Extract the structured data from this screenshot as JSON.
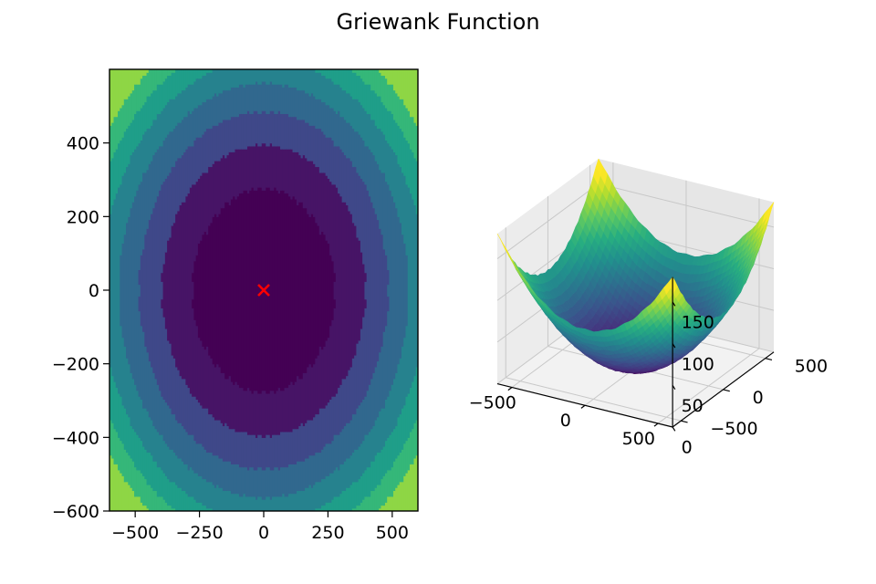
{
  "figure": {
    "title": "Griewank Function"
  },
  "colors": {
    "levels": [
      "#440154",
      "#471466",
      "#3f4889",
      "#31688e",
      "#26828e",
      "#1f9e89",
      "#35b779",
      "#8ed645"
    ],
    "marker": "#ff0000",
    "pane": "#f2f2f2",
    "grid": "#c8c8c8"
  },
  "chart_data": [
    {
      "type": "heatmap",
      "subtype": "filled-contour",
      "title": "",
      "xlabel": "",
      "ylabel": "",
      "xlim": [
        -600,
        600
      ],
      "ylim": [
        -600,
        600
      ],
      "xticks": [
        -500,
        -250,
        0,
        250,
        500
      ],
      "xtick_labels": [
        "−500",
        "−250",
        "0",
        "250",
        "500"
      ],
      "yticks": [
        -600,
        -400,
        -200,
        0,
        200,
        400
      ],
      "ytick_labels": [
        "−600",
        "−400",
        "−200",
        "0",
        "200",
        "400"
      ],
      "levels": [
        0,
        20,
        40,
        60,
        80,
        100,
        120,
        140,
        160,
        180
      ],
      "grid": false,
      "colormap": "viridis",
      "annotations": [
        {
          "type": "marker",
          "symbol": "x",
          "x": 0,
          "y": 0,
          "color": "#ff0000"
        }
      ]
    },
    {
      "type": "surface",
      "title": "",
      "xlim": [
        -600,
        600
      ],
      "ylim": [
        -600,
        600
      ],
      "zlim": [
        0,
        180
      ],
      "xticks": [
        -500,
        0,
        500
      ],
      "xtick_labels": [
        "−500",
        "0",
        "500"
      ],
      "yticks": [
        -500,
        0,
        500
      ],
      "ytick_labels": [
        "−500",
        "0",
        "500"
      ],
      "zticks": [
        0,
        50,
        100,
        150
      ],
      "ztick_labels": [
        "0",
        "50",
        "100",
        "150"
      ],
      "grid": true,
      "colormap": "viridis"
    }
  ]
}
